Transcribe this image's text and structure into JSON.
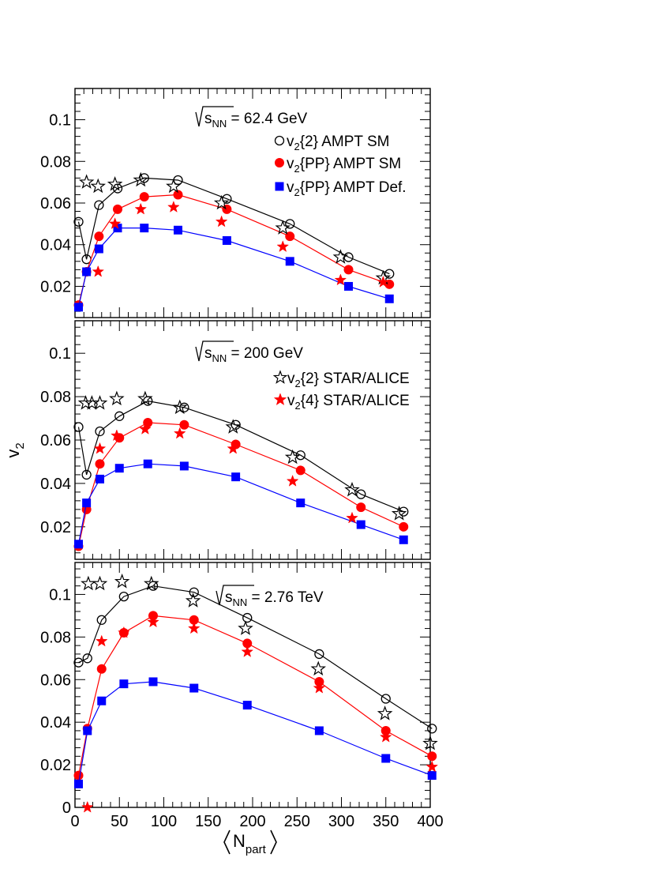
{
  "figure": {
    "ylabel": "v",
    "ylabel_sub": "2",
    "xlabel_main": "N",
    "xlabel_sub": "part"
  },
  "legend": {
    "v2_2_ampt_sm": {
      "pre": "v",
      "sub": "2",
      "post": "{2} AMPT SM"
    },
    "v2_pp_ampt_sm": {
      "pre": "v",
      "sub": "2",
      "post": "{PP} AMPT SM"
    },
    "v2_pp_ampt_def": {
      "pre": "v",
      "sub": "2",
      "post": "{PP} AMPT Def."
    },
    "v2_2_star_alice": {
      "pre": "v",
      "sub": "2",
      "post": "{2} STAR/ALICE"
    },
    "v2_4_star_alice": {
      "pre": "v",
      "sub": "2",
      "post": "{4} STAR/ALICE"
    }
  },
  "colors": {
    "ampt_sm_2": "#000000",
    "ampt_sm_pp": "#ff0000",
    "ampt_def_pp": "#0000ff",
    "data_2": "#000000",
    "data_4": "#ff0000"
  },
  "chart_data": [
    {
      "type": "line",
      "panel": "top",
      "energy_pre": "s",
      "energy_sub": "NN",
      "energy_post": " = 62.4 GeV",
      "xlim": [
        0,
        400
      ],
      "ylim": [
        0.005,
        0.115
      ],
      "yticks": [
        0.02,
        0.04,
        0.06,
        0.08,
        0.1
      ],
      "yticklabels": [
        "0.02",
        "0.04",
        "0.06",
        "0.08",
        "0.1"
      ],
      "series": [
        {
          "name": "v2{2} AMPT SM",
          "marker": "open-circle",
          "x": [
            4,
            13,
            27,
            48,
            78,
            116,
            171,
            242,
            308,
            354
          ],
          "y": [
            0.051,
            0.033,
            0.059,
            0.067,
            0.072,
            0.071,
            0.062,
            0.05,
            0.034,
            0.026
          ]
        },
        {
          "name": "v2{PP} AMPT SM",
          "marker": "filled-circle",
          "x": [
            4,
            13,
            27,
            48,
            78,
            116,
            171,
            242,
            308,
            354
          ],
          "y": [
            0.011,
            0.027,
            0.044,
            0.057,
            0.063,
            0.064,
            0.057,
            0.044,
            0.028,
            0.021
          ]
        },
        {
          "name": "v2{PP} AMPT Def.",
          "marker": "filled-square",
          "x": [
            4,
            13,
            27,
            48,
            78,
            116,
            171,
            242,
            308,
            354
          ],
          "y": [
            0.01,
            0.027,
            0.038,
            0.048,
            0.048,
            0.047,
            0.042,
            0.032,
            0.02,
            0.014
          ]
        },
        {
          "name": "v2{2} STAR/ALICE",
          "marker": "open-star",
          "x": [
            13,
            26,
            45,
            74,
            111,
            165,
            234,
            299,
            347
          ],
          "y": [
            0.07,
            0.068,
            0.069,
            0.071,
            0.068,
            0.06,
            0.048,
            0.034,
            0.024
          ]
        },
        {
          "name": "v2{4} STAR/ALICE",
          "marker": "filled-star",
          "x": [
            26,
            45,
            74,
            111,
            165,
            234,
            299,
            347
          ],
          "y": [
            0.027,
            0.05,
            0.057,
            0.058,
            0.051,
            0.039,
            0.023,
            0.022
          ]
        }
      ]
    },
    {
      "type": "line",
      "panel": "middle",
      "energy_pre": "s",
      "energy_sub": "NN",
      "energy_post": " = 200 GeV",
      "xlim": [
        0,
        400
      ],
      "ylim": [
        0.005,
        0.115
      ],
      "yticks": [
        0.02,
        0.04,
        0.06,
        0.08,
        0.1
      ],
      "yticklabels": [
        "0.02",
        "0.04",
        "0.06",
        "0.08",
        "0.1"
      ],
      "series": [
        {
          "name": "v2{2} AMPT SM",
          "marker": "open-circle",
          "x": [
            4,
            13,
            28,
            50,
            82,
            123,
            181,
            254,
            322,
            370
          ],
          "y": [
            0.066,
            0.044,
            0.064,
            0.071,
            0.078,
            0.075,
            0.067,
            0.053,
            0.035,
            0.027
          ]
        },
        {
          "name": "v2{PP} AMPT SM",
          "marker": "filled-circle",
          "x": [
            4,
            13,
            28,
            50,
            82,
            123,
            181,
            254,
            322,
            370
          ],
          "y": [
            0.011,
            0.028,
            0.049,
            0.061,
            0.068,
            0.067,
            0.058,
            0.046,
            0.029,
            0.02
          ]
        },
        {
          "name": "v2{PP} AMPT Def.",
          "marker": "filled-square",
          "x": [
            4,
            13,
            28,
            50,
            82,
            123,
            181,
            254,
            322,
            370
          ],
          "y": [
            0.012,
            0.031,
            0.042,
            0.047,
            0.049,
            0.048,
            0.043,
            0.031,
            0.021,
            0.014
          ]
        },
        {
          "name": "v2{2} STAR/ALICE",
          "marker": "open-star",
          "x": [
            12,
            19,
            28,
            47,
            79,
            118,
            178,
            245,
            312,
            365
          ],
          "y": [
            0.077,
            0.077,
            0.077,
            0.079,
            0.079,
            0.075,
            0.066,
            0.052,
            0.037,
            0.026
          ]
        },
        {
          "name": "v2{4} STAR/ALICE",
          "marker": "filled-star",
          "x": [
            28,
            47,
            79,
            118,
            178,
            245,
            312
          ],
          "y": [
            0.056,
            0.062,
            0.065,
            0.063,
            0.056,
            0.041,
            0.024
          ]
        }
      ]
    },
    {
      "type": "line",
      "panel": "bottom",
      "energy_pre": "s",
      "energy_sub": "NN",
      "energy_post": " = 2.76 TeV",
      "xlim": [
        0,
        400
      ],
      "ylim": [
        0,
        0.115
      ],
      "yticks": [
        0,
        0.02,
        0.04,
        0.06,
        0.08,
        0.1
      ],
      "yticklabels": [
        "0",
        "0.02",
        "0.04",
        "0.06",
        "0.08",
        "0.1"
      ],
      "xticks": [
        0,
        50,
        100,
        150,
        200,
        250,
        300,
        350,
        400
      ],
      "xticklabels": [
        "0",
        "50",
        "100",
        "150",
        "200",
        "250",
        "300",
        "350",
        "400"
      ],
      "series": [
        {
          "name": "v2{2} AMPT SM",
          "marker": "open-circle",
          "x": [
            4,
            14,
            30,
            55,
            88,
            134,
            194,
            275,
            350,
            402
          ],
          "y": [
            0.068,
            0.07,
            0.088,
            0.099,
            0.104,
            0.101,
            0.089,
            0.072,
            0.051,
            0.037
          ]
        },
        {
          "name": "v2{PP} AMPT SM",
          "marker": "filled-circle",
          "x": [
            4,
            14,
            30,
            55,
            88,
            134,
            194,
            275,
            350,
            402
          ],
          "y": [
            0.015,
            0.037,
            0.065,
            0.082,
            0.09,
            0.088,
            0.077,
            0.059,
            0.036,
            0.024
          ]
        },
        {
          "name": "v2{PP} AMPT Def.",
          "marker": "filled-square",
          "x": [
            4,
            14,
            30,
            55,
            88,
            134,
            194,
            275,
            350,
            402
          ],
          "y": [
            0.011,
            0.036,
            0.05,
            0.058,
            0.059,
            0.056,
            0.048,
            0.036,
            0.023,
            0.015
          ]
        },
        {
          "name": "v2{2} STAR/ALICE",
          "marker": "open-star",
          "x": [
            15,
            28,
            53,
            86,
            133,
            192,
            274,
            349,
            400
          ],
          "y": [
            0.105,
            0.105,
            0.106,
            0.105,
            0.097,
            0.084,
            0.065,
            0.044,
            0.03
          ]
        },
        {
          "name": "v2{4} STAR/ALICE",
          "marker": "filled-star",
          "x": [
            14,
            30,
            55,
            88,
            134,
            194,
            275,
            350,
            402
          ],
          "y": [
            0.0,
            0.078,
            0.082,
            0.087,
            0.084,
            0.073,
            0.056,
            0.033,
            0.019
          ]
        }
      ]
    }
  ]
}
